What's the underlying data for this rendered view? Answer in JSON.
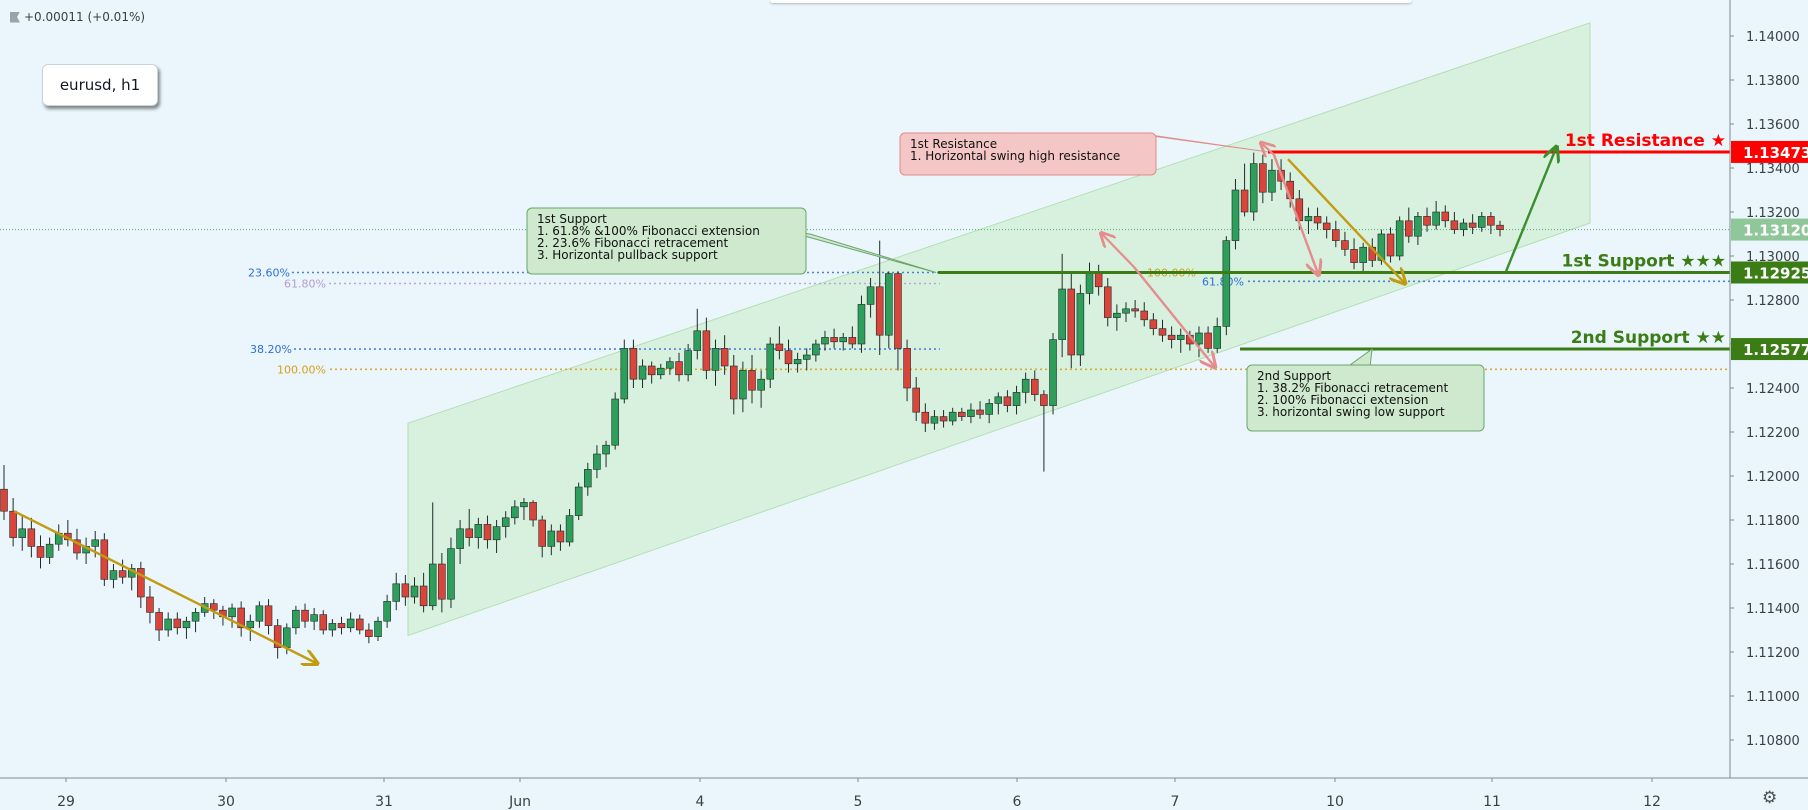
{
  "header": {
    "change_text": "+0.00011 (+0.01%)",
    "symbol_label": "eurusd, h1"
  },
  "chart_data": {
    "type": "candlestick",
    "symbol": "eurusd",
    "timeframe": "h1",
    "x_tick_labels": [
      "29",
      "30",
      "31",
      "Jun",
      "4",
      "5",
      "6",
      "7",
      "10",
      "11",
      "12"
    ],
    "y_tick_labels": [
      "1.10800",
      "1.11000",
      "1.11200",
      "1.11400",
      "1.11600",
      "1.11800",
      "1.12000",
      "1.12200",
      "1.12400",
      "1.12600",
      "1.12800",
      "1.13000",
      "1.13200",
      "1.13400",
      "1.13600",
      "1.13800",
      "1.14000"
    ],
    "ylim": [
      1.1065,
      1.1425
    ],
    "grid": false,
    "last_price": {
      "value": 1.1312,
      "label": "1.13120"
    },
    "price_levels": [
      {
        "name": "1st Resistance",
        "label_text": "1st Resistance ★",
        "value": 1.13473,
        "value_text": "1.13473",
        "color": "#ff0000"
      },
      {
        "name": "1st Support",
        "label_text": "1st Support ★★★",
        "value": 1.12925,
        "value_text": "1.12925",
        "color": "#3b7d14"
      },
      {
        "name": "2nd Support",
        "label_text": "2nd Support ★★",
        "value": 1.12577,
        "value_text": "1.12577",
        "color": "#3b7d14"
      }
    ],
    "fib_levels": [
      {
        "label": "23.60%",
        "value": 1.12925,
        "color": "#2f6fdc"
      },
      {
        "label": "61.80%",
        "value": 1.12875,
        "color": "#b49ad0"
      },
      {
        "label": "38.20%",
        "value": 1.12577,
        "color": "#2f6fdc"
      },
      {
        "label": "100.00%",
        "value": 1.12485,
        "color": "#d4a017"
      },
      {
        "label": "100.00%",
        "value": 1.12925,
        "color": "#d4a017"
      },
      {
        "label": "61.80%",
        "value": 1.12885,
        "color": "#2f6fdc"
      }
    ],
    "annotations": [
      {
        "title": "1st Resistance",
        "lines": [
          "1. Horizontal swing high resistance"
        ],
        "color": "#f4c6c6",
        "border": "#e08a8a"
      },
      {
        "title": "1st Support",
        "lines": [
          "1.  61.8% &100% Fibonacci extension",
          "2. 23.6% Fibonacci retracement",
          "3. Horizontal pullback support"
        ],
        "color": "#cfe9cf",
        "border": "#6aa56a"
      },
      {
        "title": "2nd Support",
        "lines": [
          "1. 38.2% Fibonacci retracement",
          "2. 100% Fibonacci extension",
          "3. horizontal swing low support"
        ],
        "color": "#cfe9cf",
        "border": "#6aa56a"
      }
    ],
    "colors": {
      "up": "#2e9e5b",
      "down": "#d9453b",
      "channel": "#c8ecc7",
      "arrow_gold": "#c29b12",
      "arrow_pink": "#e58c8c",
      "arrow_green": "#3b8e2c"
    },
    "candles": [
      {
        "o": 1.1194,
        "h": 1.1205,
        "l": 1.118,
        "c": 1.1184
      },
      {
        "o": 1.1184,
        "h": 1.119,
        "l": 1.1168,
        "c": 1.1172
      },
      {
        "o": 1.1172,
        "h": 1.1182,
        "l": 1.1166,
        "c": 1.1176
      },
      {
        "o": 1.1176,
        "h": 1.1181,
        "l": 1.1163,
        "c": 1.1168
      },
      {
        "o": 1.1168,
        "h": 1.1173,
        "l": 1.1158,
        "c": 1.1163
      },
      {
        "o": 1.1163,
        "h": 1.1172,
        "l": 1.116,
        "c": 1.1169
      },
      {
        "o": 1.1169,
        "h": 1.1178,
        "l": 1.1166,
        "c": 1.1174
      },
      {
        "o": 1.1174,
        "h": 1.118,
        "l": 1.1168,
        "c": 1.1171
      },
      {
        "o": 1.1171,
        "h": 1.1176,
        "l": 1.1162,
        "c": 1.1165
      },
      {
        "o": 1.1165,
        "h": 1.1172,
        "l": 1.116,
        "c": 1.1168
      },
      {
        "o": 1.1168,
        "h": 1.1175,
        "l": 1.1163,
        "c": 1.1171
      },
      {
        "o": 1.1171,
        "h": 1.1174,
        "l": 1.115,
        "c": 1.1153
      },
      {
        "o": 1.1153,
        "h": 1.116,
        "l": 1.1149,
        "c": 1.1157
      },
      {
        "o": 1.1157,
        "h": 1.1162,
        "l": 1.1151,
        "c": 1.1154
      },
      {
        "o": 1.1154,
        "h": 1.116,
        "l": 1.1148,
        "c": 1.1158
      },
      {
        "o": 1.1158,
        "h": 1.1161,
        "l": 1.114,
        "c": 1.1145
      },
      {
        "o": 1.1145,
        "h": 1.115,
        "l": 1.1133,
        "c": 1.1138
      },
      {
        "o": 1.1138,
        "h": 1.114,
        "l": 1.1125,
        "c": 1.113
      },
      {
        "o": 1.113,
        "h": 1.1138,
        "l": 1.1127,
        "c": 1.1135
      },
      {
        "o": 1.1135,
        "h": 1.1138,
        "l": 1.1128,
        "c": 1.1131
      },
      {
        "o": 1.1131,
        "h": 1.1136,
        "l": 1.1126,
        "c": 1.1134
      },
      {
        "o": 1.1134,
        "h": 1.114,
        "l": 1.1129,
        "c": 1.1138
      },
      {
        "o": 1.1138,
        "h": 1.1145,
        "l": 1.1136,
        "c": 1.1142
      },
      {
        "o": 1.1142,
        "h": 1.1144,
        "l": 1.1135,
        "c": 1.1139
      },
      {
        "o": 1.1139,
        "h": 1.1141,
        "l": 1.1132,
        "c": 1.1136
      },
      {
        "o": 1.1136,
        "h": 1.1142,
        "l": 1.1131,
        "c": 1.114
      },
      {
        "o": 1.114,
        "h": 1.1143,
        "l": 1.1127,
        "c": 1.1131
      },
      {
        "o": 1.1131,
        "h": 1.1137,
        "l": 1.1125,
        "c": 1.1134
      },
      {
        "o": 1.1134,
        "h": 1.1143,
        "l": 1.1131,
        "c": 1.1141
      },
      {
        "o": 1.1141,
        "h": 1.1144,
        "l": 1.1128,
        "c": 1.1132
      },
      {
        "o": 1.1132,
        "h": 1.1135,
        "l": 1.1117,
        "c": 1.1122
      },
      {
        "o": 1.1122,
        "h": 1.1133,
        "l": 1.1119,
        "c": 1.1131
      },
      {
        "o": 1.1131,
        "h": 1.1141,
        "l": 1.1128,
        "c": 1.1139
      },
      {
        "o": 1.1139,
        "h": 1.1142,
        "l": 1.1131,
        "c": 1.1134
      },
      {
        "o": 1.1134,
        "h": 1.114,
        "l": 1.113,
        "c": 1.1137
      },
      {
        "o": 1.1137,
        "h": 1.1139,
        "l": 1.1128,
        "c": 1.113
      },
      {
        "o": 1.113,
        "h": 1.1135,
        "l": 1.1127,
        "c": 1.1133
      },
      {
        "o": 1.1133,
        "h": 1.1136,
        "l": 1.1128,
        "c": 1.1131
      },
      {
        "o": 1.1131,
        "h": 1.1138,
        "l": 1.1129,
        "c": 1.1135
      },
      {
        "o": 1.1135,
        "h": 1.1137,
        "l": 1.1128,
        "c": 1.113
      },
      {
        "o": 1.113,
        "h": 1.1133,
        "l": 1.1124,
        "c": 1.1127
      },
      {
        "o": 1.1127,
        "h": 1.1136,
        "l": 1.1125,
        "c": 1.1134
      },
      {
        "o": 1.1134,
        "h": 1.1146,
        "l": 1.1131,
        "c": 1.1143
      },
      {
        "o": 1.1143,
        "h": 1.1156,
        "l": 1.1139,
        "c": 1.1151
      },
      {
        "o": 1.1151,
        "h": 1.1155,
        "l": 1.1141,
        "c": 1.1145
      },
      {
        "o": 1.1145,
        "h": 1.1154,
        "l": 1.1142,
        "c": 1.115
      },
      {
        "o": 1.115,
        "h": 1.1156,
        "l": 1.1138,
        "c": 1.1141
      },
      {
        "o": 1.1141,
        "h": 1.1188,
        "l": 1.1139,
        "c": 1.116
      },
      {
        "o": 1.116,
        "h": 1.1165,
        "l": 1.1138,
        "c": 1.1144
      },
      {
        "o": 1.1144,
        "h": 1.1172,
        "l": 1.114,
        "c": 1.1167
      },
      {
        "o": 1.1167,
        "h": 1.118,
        "l": 1.116,
        "c": 1.1176
      },
      {
        "o": 1.1176,
        "h": 1.1185,
        "l": 1.1168,
        "c": 1.1172
      },
      {
        "o": 1.1172,
        "h": 1.1181,
        "l": 1.1167,
        "c": 1.1178
      },
      {
        "o": 1.1178,
        "h": 1.1182,
        "l": 1.1167,
        "c": 1.1171
      },
      {
        "o": 1.1171,
        "h": 1.118,
        "l": 1.1165,
        "c": 1.1177
      },
      {
        "o": 1.1177,
        "h": 1.1184,
        "l": 1.1172,
        "c": 1.1181
      },
      {
        "o": 1.1181,
        "h": 1.1189,
        "l": 1.1178,
        "c": 1.1186
      },
      {
        "o": 1.1186,
        "h": 1.119,
        "l": 1.118,
        "c": 1.1188
      },
      {
        "o": 1.1188,
        "h": 1.1189,
        "l": 1.1177,
        "c": 1.118
      },
      {
        "o": 1.118,
        "h": 1.1182,
        "l": 1.1163,
        "c": 1.1168
      },
      {
        "o": 1.1168,
        "h": 1.1178,
        "l": 1.1164,
        "c": 1.1175
      },
      {
        "o": 1.1175,
        "h": 1.1178,
        "l": 1.1166,
        "c": 1.117
      },
      {
        "o": 1.117,
        "h": 1.1185,
        "l": 1.1168,
        "c": 1.1182
      },
      {
        "o": 1.1182,
        "h": 1.1197,
        "l": 1.118,
        "c": 1.1195
      },
      {
        "o": 1.1195,
        "h": 1.1206,
        "l": 1.1191,
        "c": 1.1203
      },
      {
        "o": 1.1203,
        "h": 1.1214,
        "l": 1.1199,
        "c": 1.121
      },
      {
        "o": 1.121,
        "h": 1.1216,
        "l": 1.1204,
        "c": 1.1214
      },
      {
        "o": 1.1214,
        "h": 1.1238,
        "l": 1.1212,
        "c": 1.1235
      },
      {
        "o": 1.1235,
        "h": 1.1262,
        "l": 1.1233,
        "c": 1.1258
      },
      {
        "o": 1.1258,
        "h": 1.1262,
        "l": 1.124,
        "c": 1.1244
      },
      {
        "o": 1.1244,
        "h": 1.1253,
        "l": 1.124,
        "c": 1.125
      },
      {
        "o": 1.125,
        "h": 1.1252,
        "l": 1.1242,
        "c": 1.1246
      },
      {
        "o": 1.1246,
        "h": 1.1251,
        "l": 1.1244,
        "c": 1.1249
      },
      {
        "o": 1.1249,
        "h": 1.1254,
        "l": 1.1246,
        "c": 1.1252
      },
      {
        "o": 1.1252,
        "h": 1.1256,
        "l": 1.1243,
        "c": 1.1246
      },
      {
        "o": 1.1246,
        "h": 1.126,
        "l": 1.1243,
        "c": 1.1257
      },
      {
        "o": 1.1257,
        "h": 1.1276,
        "l": 1.1253,
        "c": 1.1266
      },
      {
        "o": 1.1266,
        "h": 1.1272,
        "l": 1.1244,
        "c": 1.1248
      },
      {
        "o": 1.1248,
        "h": 1.1262,
        "l": 1.1241,
        "c": 1.1258
      },
      {
        "o": 1.1258,
        "h": 1.1264,
        "l": 1.1246,
        "c": 1.125
      },
      {
        "o": 1.125,
        "h": 1.1255,
        "l": 1.1228,
        "c": 1.1235
      },
      {
        "o": 1.1235,
        "h": 1.1252,
        "l": 1.1229,
        "c": 1.1248
      },
      {
        "o": 1.1248,
        "h": 1.1255,
        "l": 1.1233,
        "c": 1.1239
      },
      {
        "o": 1.1239,
        "h": 1.1248,
        "l": 1.1231,
        "c": 1.1244
      },
      {
        "o": 1.1244,
        "h": 1.1263,
        "l": 1.124,
        "c": 1.126
      },
      {
        "o": 1.126,
        "h": 1.1268,
        "l": 1.1253,
        "c": 1.1257
      },
      {
        "o": 1.1257,
        "h": 1.1262,
        "l": 1.1247,
        "c": 1.1251
      },
      {
        "o": 1.1251,
        "h": 1.1256,
        "l": 1.1247,
        "c": 1.1253
      },
      {
        "o": 1.1253,
        "h": 1.1258,
        "l": 1.1248,
        "c": 1.1255
      },
      {
        "o": 1.1255,
        "h": 1.1262,
        "l": 1.1252,
        "c": 1.126
      },
      {
        "o": 1.126,
        "h": 1.1266,
        "l": 1.1257,
        "c": 1.1263
      },
      {
        "o": 1.1263,
        "h": 1.1267,
        "l": 1.1258,
        "c": 1.1261
      },
      {
        "o": 1.1261,
        "h": 1.1265,
        "l": 1.1257,
        "c": 1.1263
      },
      {
        "o": 1.1263,
        "h": 1.1268,
        "l": 1.1258,
        "c": 1.126
      },
      {
        "o": 1.126,
        "h": 1.1282,
        "l": 1.1256,
        "c": 1.1278
      },
      {
        "o": 1.1278,
        "h": 1.129,
        "l": 1.1272,
        "c": 1.1286
      },
      {
        "o": 1.1286,
        "h": 1.1307,
        "l": 1.1255,
        "c": 1.1264
      },
      {
        "o": 1.1264,
        "h": 1.1293,
        "l": 1.1258,
        "c": 1.1292
      },
      {
        "o": 1.1292,
        "h": 1.1293,
        "l": 1.1248,
        "c": 1.1258
      },
      {
        "o": 1.1258,
        "h": 1.1262,
        "l": 1.1234,
        "c": 1.124
      },
      {
        "o": 1.124,
        "h": 1.1245,
        "l": 1.1225,
        "c": 1.1229
      },
      {
        "o": 1.1229,
        "h": 1.1233,
        "l": 1.122,
        "c": 1.1224
      },
      {
        "o": 1.1224,
        "h": 1.123,
        "l": 1.1221,
        "c": 1.1227
      },
      {
        "o": 1.1227,
        "h": 1.123,
        "l": 1.1222,
        "c": 1.1225
      },
      {
        "o": 1.1225,
        "h": 1.1231,
        "l": 1.1223,
        "c": 1.1229
      },
      {
        "o": 1.1229,
        "h": 1.1231,
        "l": 1.1225,
        "c": 1.1227
      },
      {
        "o": 1.1227,
        "h": 1.1233,
        "l": 1.1224,
        "c": 1.123
      },
      {
        "o": 1.123,
        "h": 1.1234,
        "l": 1.1226,
        "c": 1.1228
      },
      {
        "o": 1.1228,
        "h": 1.1235,
        "l": 1.1224,
        "c": 1.1233
      },
      {
        "o": 1.1233,
        "h": 1.1238,
        "l": 1.1228,
        "c": 1.1236
      },
      {
        "o": 1.1236,
        "h": 1.1239,
        "l": 1.1229,
        "c": 1.1232
      },
      {
        "o": 1.1232,
        "h": 1.1241,
        "l": 1.1228,
        "c": 1.1238
      },
      {
        "o": 1.1238,
        "h": 1.1247,
        "l": 1.1233,
        "c": 1.1244
      },
      {
        "o": 1.1244,
        "h": 1.1248,
        "l": 1.1234,
        "c": 1.1237
      },
      {
        "o": 1.1237,
        "h": 1.1239,
        "l": 1.1202,
        "c": 1.1232
      },
      {
        "o": 1.1232,
        "h": 1.1265,
        "l": 1.1228,
        "c": 1.1262
      },
      {
        "o": 1.1262,
        "h": 1.1301,
        "l": 1.1254,
        "c": 1.1285
      },
      {
        "o": 1.1285,
        "h": 1.1292,
        "l": 1.1249,
        "c": 1.1255
      },
      {
        "o": 1.1255,
        "h": 1.1287,
        "l": 1.125,
        "c": 1.1283
      },
      {
        "o": 1.1283,
        "h": 1.1297,
        "l": 1.1278,
        "c": 1.1292
      },
      {
        "o": 1.1292,
        "h": 1.1296,
        "l": 1.1282,
        "c": 1.1286
      },
      {
        "o": 1.1286,
        "h": 1.129,
        "l": 1.1268,
        "c": 1.1272
      },
      {
        "o": 1.1272,
        "h": 1.1278,
        "l": 1.1266,
        "c": 1.1274
      },
      {
        "o": 1.1274,
        "h": 1.1279,
        "l": 1.127,
        "c": 1.1276
      },
      {
        "o": 1.1276,
        "h": 1.128,
        "l": 1.1272,
        "c": 1.1275
      },
      {
        "o": 1.1275,
        "h": 1.1279,
        "l": 1.1268,
        "c": 1.1271
      },
      {
        "o": 1.1271,
        "h": 1.1274,
        "l": 1.1264,
        "c": 1.1267
      },
      {
        "o": 1.1267,
        "h": 1.1271,
        "l": 1.1261,
        "c": 1.1264
      },
      {
        "o": 1.1264,
        "h": 1.1268,
        "l": 1.1258,
        "c": 1.1262
      },
      {
        "o": 1.1262,
        "h": 1.1267,
        "l": 1.1256,
        "c": 1.1264
      },
      {
        "o": 1.1264,
        "h": 1.1266,
        "l": 1.1257,
        "c": 1.126
      },
      {
        "o": 1.126,
        "h": 1.1268,
        "l": 1.1254,
        "c": 1.1265
      },
      {
        "o": 1.1265,
        "h": 1.1268,
        "l": 1.1256,
        "c": 1.1258
      },
      {
        "o": 1.1258,
        "h": 1.1272,
        "l": 1.1256,
        "c": 1.1268
      },
      {
        "o": 1.1268,
        "h": 1.1309,
        "l": 1.1264,
        "c": 1.1307
      },
      {
        "o": 1.1307,
        "h": 1.1335,
        "l": 1.1303,
        "c": 1.133
      },
      {
        "o": 1.133,
        "h": 1.1342,
        "l": 1.1318,
        "c": 1.132
      },
      {
        "o": 1.132,
        "h": 1.1347,
        "l": 1.1316,
        "c": 1.1342
      },
      {
        "o": 1.1342,
        "h": 1.1346,
        "l": 1.1324,
        "c": 1.1329
      },
      {
        "o": 1.1329,
        "h": 1.1344,
        "l": 1.1325,
        "c": 1.1339
      },
      {
        "o": 1.1339,
        "h": 1.1344,
        "l": 1.133,
        "c": 1.1334
      },
      {
        "o": 1.1334,
        "h": 1.1338,
        "l": 1.1322,
        "c": 1.1326
      },
      {
        "o": 1.1326,
        "h": 1.133,
        "l": 1.1312,
        "c": 1.1316
      },
      {
        "o": 1.1316,
        "h": 1.1322,
        "l": 1.131,
        "c": 1.1318
      },
      {
        "o": 1.1318,
        "h": 1.1322,
        "l": 1.1312,
        "c": 1.1315
      },
      {
        "o": 1.1315,
        "h": 1.1318,
        "l": 1.1308,
        "c": 1.1312
      },
      {
        "o": 1.1312,
        "h": 1.1316,
        "l": 1.1304,
        "c": 1.1307
      },
      {
        "o": 1.1307,
        "h": 1.1311,
        "l": 1.13,
        "c": 1.1303
      },
      {
        "o": 1.1303,
        "h": 1.1308,
        "l": 1.1294,
        "c": 1.1297
      },
      {
        "o": 1.1297,
        "h": 1.1306,
        "l": 1.1293,
        "c": 1.1304
      },
      {
        "o": 1.1304,
        "h": 1.1308,
        "l": 1.1295,
        "c": 1.1298
      },
      {
        "o": 1.1298,
        "h": 1.1312,
        "l": 1.1296,
        "c": 1.131
      },
      {
        "o": 1.131,
        "h": 1.1313,
        "l": 1.1297,
        "c": 1.13
      },
      {
        "o": 1.13,
        "h": 1.1318,
        "l": 1.1298,
        "c": 1.1316
      },
      {
        "o": 1.1316,
        "h": 1.1322,
        "l": 1.1306,
        "c": 1.1309
      },
      {
        "o": 1.1309,
        "h": 1.132,
        "l": 1.1305,
        "c": 1.1318
      },
      {
        "o": 1.1318,
        "h": 1.1322,
        "l": 1.1311,
        "c": 1.1314
      },
      {
        "o": 1.1314,
        "h": 1.1325,
        "l": 1.1312,
        "c": 1.132
      },
      {
        "o": 1.132,
        "h": 1.1323,
        "l": 1.1313,
        "c": 1.1316
      },
      {
        "o": 1.1316,
        "h": 1.132,
        "l": 1.131,
        "c": 1.1312
      },
      {
        "o": 1.1312,
        "h": 1.1317,
        "l": 1.1309,
        "c": 1.1315
      },
      {
        "o": 1.1315,
        "h": 1.1319,
        "l": 1.131,
        "c": 1.1313
      },
      {
        "o": 1.1313,
        "h": 1.132,
        "l": 1.1311,
        "c": 1.1318
      },
      {
        "o": 1.1318,
        "h": 1.132,
        "l": 1.131,
        "c": 1.1314
      },
      {
        "o": 1.1314,
        "h": 1.1316,
        "l": 1.1309,
        "c": 1.1312
      }
    ]
  }
}
